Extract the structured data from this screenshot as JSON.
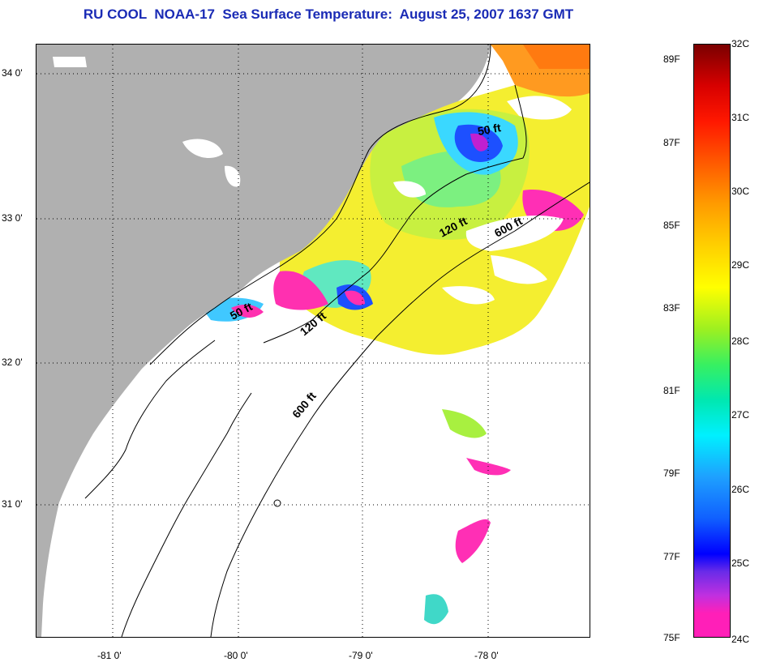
{
  "title": "RU COOL  NOAA-17  Sea Surface Temperature:  August 25, 2007 1637 GMT",
  "lat_labels": [
    "34 0'",
    "33 0'",
    "32 0'",
    "31 0'"
  ],
  "lon_labels": [
    "-81 0'",
    "-80 0'",
    "-79 0'",
    "-78 0'"
  ],
  "depth_contours": [
    "50 ft",
    "120 ft",
    "600 ft",
    "50 ft",
    "120 ft",
    "600 ft"
  ],
  "colorbar": {
    "fahrenheit": [
      "89F",
      "87F",
      "85F",
      "83F",
      "81F",
      "79F",
      "77F",
      "75F"
    ],
    "celsius": [
      "32C",
      "31C",
      "30C",
      "29C",
      "28C",
      "27C",
      "26C",
      "25C",
      "24C"
    ]
  },
  "colors": {
    "land": "#b0b0b0",
    "title": "#1a2bb5",
    "cloud": "#ffffff"
  }
}
